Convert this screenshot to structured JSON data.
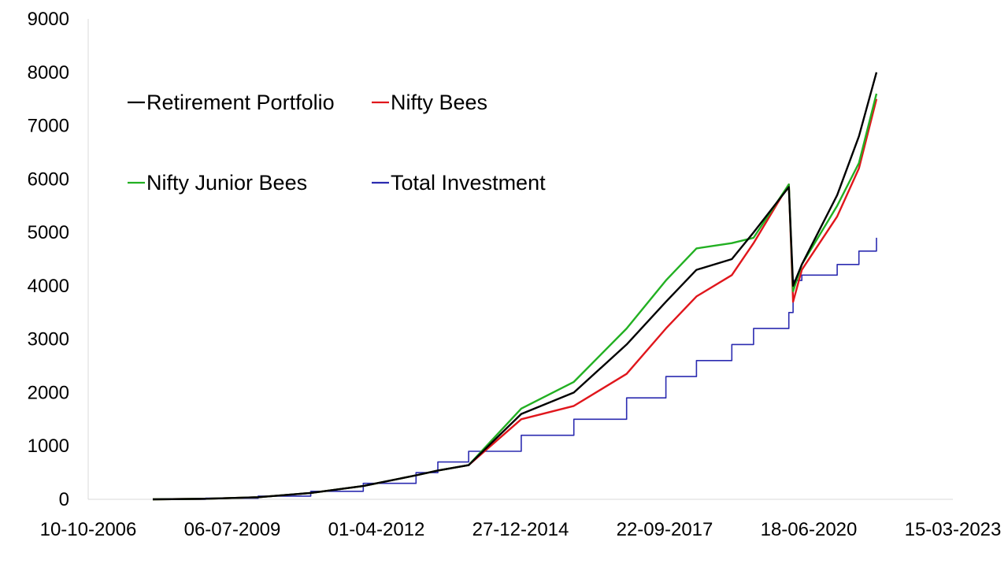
{
  "chart_data": {
    "type": "line",
    "title": "",
    "xlabel": "",
    "ylabel": "",
    "x_axis": {
      "type": "date",
      "range": [
        "10-10-2006",
        "15-03-2023"
      ],
      "tick_labels": [
        "10-10-2006",
        "06-07-2009",
        "01-04-2012",
        "27-12-2014",
        "22-09-2017",
        "18-06-2020",
        "15-03-2023"
      ]
    },
    "y_axis": {
      "range": [
        0,
        9000
      ],
      "tick_labels": [
        "0",
        "1000",
        "2000",
        "3000",
        "4000",
        "5000",
        "6000",
        "7000",
        "8000",
        "9000"
      ]
    },
    "grid": false,
    "legend": {
      "position": "top-left",
      "entries": [
        {
          "label": "Retirement Portfolio",
          "color": "#000000"
        },
        {
          "label": "Nifty Bees",
          "color": "#e0161c"
        },
        {
          "label": "Nifty Junior Bees",
          "color": "#22b022"
        },
        {
          "label": "Total Investment",
          "color": "#2b2bb0"
        }
      ]
    },
    "x": [
      "01-01-2008",
      "01-01-2009",
      "01-01-2010",
      "01-01-2011",
      "01-01-2012",
      "01-01-2013",
      "01-06-2013",
      "01-01-2014",
      "01-01-2015",
      "01-01-2016",
      "01-01-2017",
      "01-10-2017",
      "01-05-2018",
      "01-01-2019",
      "01-06-2019",
      "01-02-2020",
      "01-03-2020",
      "01-05-2020",
      "01-01-2021",
      "01-06-2021",
      "01-10-2021"
    ],
    "series": [
      {
        "name": "Retirement Portfolio",
        "color": "#000000",
        "values": [
          0,
          10,
          40,
          120,
          250,
          450,
          540,
          640,
          1600,
          2000,
          2900,
          3700,
          4300,
          4500,
          5000,
          5850,
          4000,
          4400,
          5700,
          6800,
          8000
        ]
      },
      {
        "name": "Nifty Bees",
        "color": "#e0161c",
        "values": [
          0,
          10,
          40,
          120,
          250,
          450,
          540,
          640,
          1500,
          1750,
          2350,
          3200,
          3800,
          4200,
          4800,
          5900,
          3700,
          4300,
          5300,
          6200,
          7500
        ]
      },
      {
        "name": "Nifty Junior Bees",
        "color": "#22b022",
        "values": [
          0,
          10,
          40,
          120,
          250,
          450,
          540,
          640,
          1700,
          2200,
          3200,
          4100,
          4700,
          4800,
          4900,
          5900,
          3900,
          4400,
          5500,
          6300,
          7600
        ]
      },
      {
        "name": "Total Investment",
        "color": "#2b2bb0",
        "values": [
          0,
          20,
          60,
          150,
          300,
          500,
          700,
          900,
          1200,
          1500,
          1900,
          2300,
          2600,
          2900,
          3200,
          3500,
          4100,
          4200,
          4400,
          4650,
          4900
        ]
      }
    ]
  }
}
